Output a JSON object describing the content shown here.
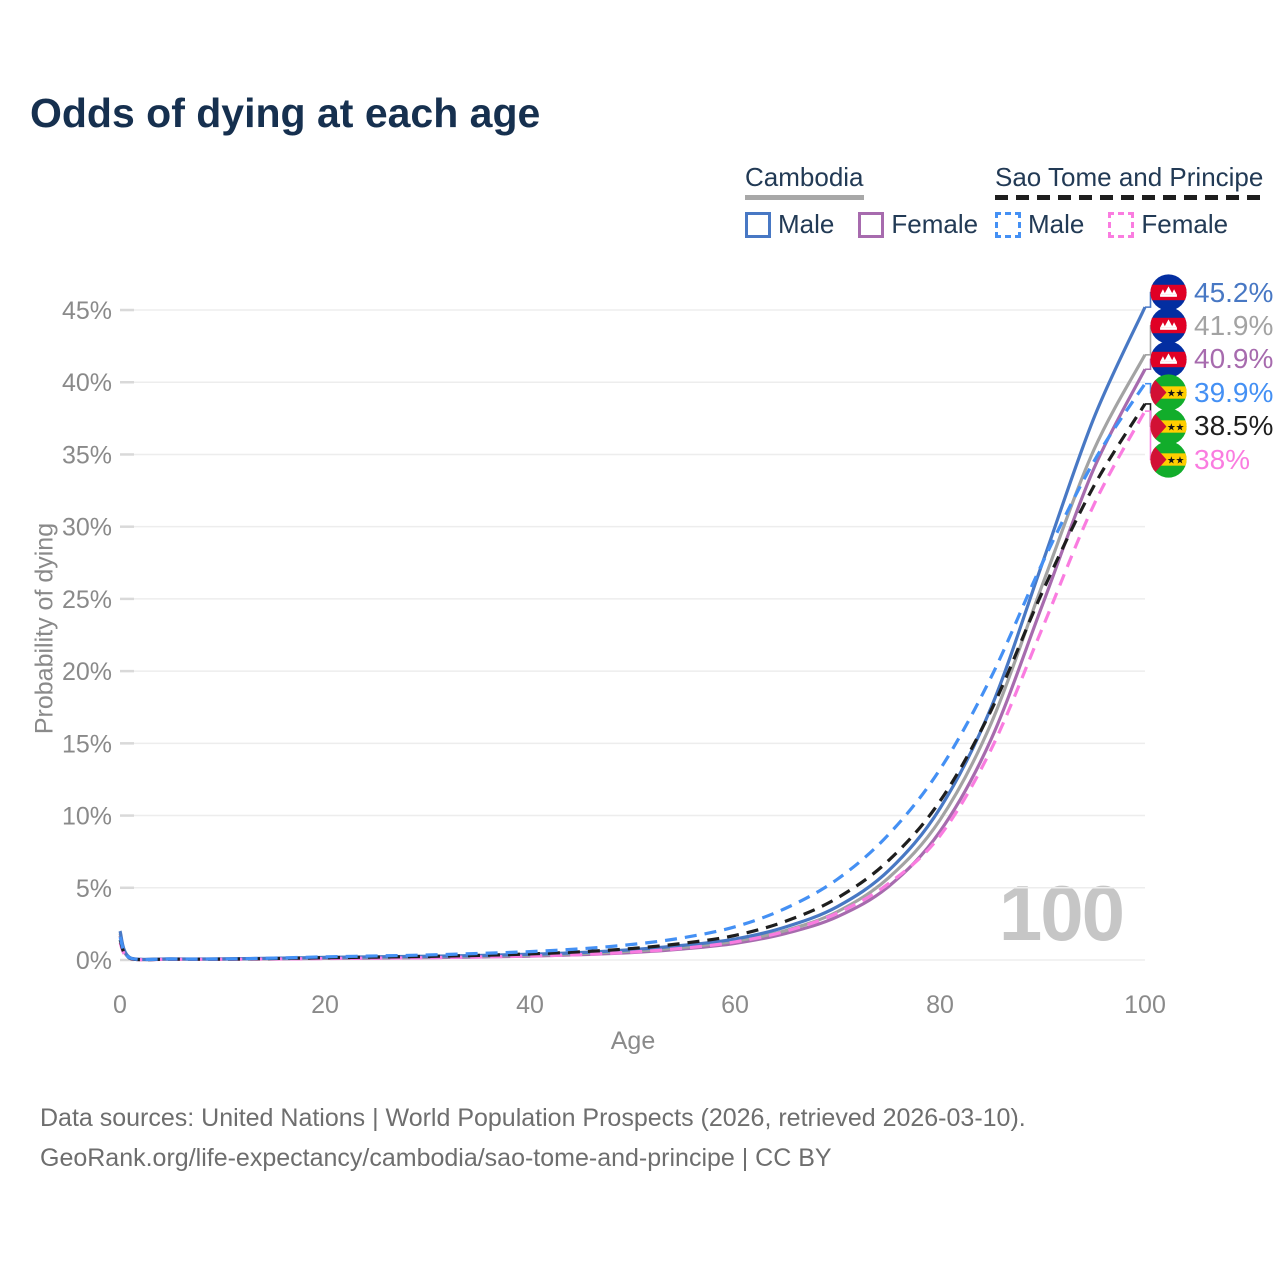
{
  "title": "Odds of dying at each age",
  "legend": {
    "cambodia": {
      "name": "Cambodia",
      "male_label": "Male",
      "female_label": "Female"
    },
    "sao_tome": {
      "name": "Sao Tome and Principe",
      "male_label": "Male",
      "female_label": "Female"
    }
  },
  "axes": {
    "x_label": "Age",
    "y_label": "Probability of dying"
  },
  "watermark": "100",
  "footer": {
    "line1": "Data sources: United Nations | World Population Prospects (2026, retrieved 2026-03-10).",
    "line2": "GeoRank.org/life-expectancy/cambodia/sao-tome-and-principe | CC BY"
  },
  "colors": {
    "title_text": "#16304f",
    "legend_text": "#223a55",
    "cambodia_male": "#4878c4",
    "cambodia_both": "#a3a3a3",
    "cambodia_female": "#a76bae",
    "stp_male": "#4490f4",
    "stp_both": "#1e1e1e",
    "stp_female": "#fa7ce0",
    "grid": "#ededed",
    "tick_stub": "#d9d9d9",
    "axis_text": "#8a8a8a",
    "watermark": "#c6c6c6",
    "footer_text": "#6e6e6e"
  },
  "chart_data": {
    "type": "line",
    "title": "Odds of dying at each age",
    "xlabel": "Age",
    "ylabel": "Probability of dying",
    "xlim": [
      0,
      100
    ],
    "ylim_percent": [
      0,
      47
    ],
    "grid": "horizontal",
    "legend_position": "top-right",
    "x_ticks": [
      0,
      20,
      40,
      60,
      80,
      100
    ],
    "y_ticks": [
      "0%",
      "5%",
      "10%",
      "15%",
      "20%",
      "25%",
      "30%",
      "35%",
      "40%",
      "45%"
    ],
    "y_tick_values": [
      0,
      5,
      10,
      15,
      20,
      25,
      30,
      35,
      40,
      45
    ],
    "ages": [
      0,
      1,
      5,
      10,
      15,
      20,
      25,
      30,
      35,
      40,
      45,
      50,
      55,
      60,
      65,
      70,
      75,
      80,
      85,
      90,
      95,
      100
    ],
    "series": [
      {
        "name": "Cambodia Male",
        "country": "Cambodia",
        "sex": "Male",
        "color": "#4878c4",
        "dashed": false,
        "flag": "kh",
        "end_label": "45.2%",
        "values_percent": [
          2.0,
          0.15,
          0.08,
          0.08,
          0.12,
          0.18,
          0.22,
          0.26,
          0.31,
          0.4,
          0.52,
          0.72,
          1.02,
          1.45,
          2.3,
          3.7,
          6.2,
          10.5,
          17.5,
          27.5,
          37.5,
          45.2
        ]
      },
      {
        "name": "Cambodia Both sexes",
        "country": "Cambodia",
        "sex": "Both",
        "color": "#a3a3a3",
        "dashed": false,
        "flag": "kh",
        "end_label": "41.9%",
        "values_percent": [
          1.85,
          0.14,
          0.07,
          0.07,
          0.1,
          0.14,
          0.17,
          0.21,
          0.26,
          0.33,
          0.44,
          0.61,
          0.88,
          1.3,
          2.05,
          3.35,
          5.7,
          9.7,
          16.4,
          26.0,
          35.3,
          41.9
        ]
      },
      {
        "name": "Cambodia Female",
        "country": "Cambodia",
        "sex": "Female",
        "color": "#a76bae",
        "dashed": false,
        "flag": "kh",
        "end_label": "40.9%",
        "values_percent": [
          1.7,
          0.12,
          0.06,
          0.06,
          0.08,
          0.11,
          0.13,
          0.16,
          0.21,
          0.27,
          0.37,
          0.52,
          0.77,
          1.15,
          1.85,
          3.0,
          5.1,
          8.9,
          15.3,
          24.6,
          34.0,
          40.9
        ]
      },
      {
        "name": "Sao Tome and Principe Male",
        "country": "Sao Tome and Principe",
        "sex": "Male",
        "color": "#4490f4",
        "dashed": true,
        "flag": "st",
        "end_label": "39.9%",
        "values_percent": [
          1.6,
          0.13,
          0.07,
          0.07,
          0.13,
          0.22,
          0.28,
          0.35,
          0.45,
          0.58,
          0.78,
          1.08,
          1.55,
          2.3,
          3.6,
          5.6,
          8.7,
          13.2,
          19.6,
          27.5,
          34.5,
          39.9
        ]
      },
      {
        "name": "Sao Tome and Principe Both sexes",
        "country": "Sao Tome and Principe",
        "sex": "Both",
        "color": "#1e1e1e",
        "dashed": true,
        "flag": "st",
        "end_label": "38.5%",
        "values_percent": [
          1.4,
          0.11,
          0.06,
          0.06,
          0.1,
          0.16,
          0.2,
          0.25,
          0.32,
          0.42,
          0.57,
          0.8,
          1.16,
          1.7,
          2.7,
          4.3,
          6.9,
          11.0,
          17.3,
          25.5,
          32.8,
          38.5
        ]
      },
      {
        "name": "Sao Tome and Principe Female",
        "country": "Sao Tome and Principe",
        "sex": "Female",
        "color": "#fa7ce0",
        "dashed": true,
        "flag": "st",
        "end_label": "38%",
        "values_percent": [
          1.2,
          0.09,
          0.05,
          0.05,
          0.07,
          0.1,
          0.13,
          0.16,
          0.21,
          0.28,
          0.38,
          0.55,
          0.82,
          1.25,
          2.0,
          3.25,
          5.3,
          8.6,
          14.6,
          23.0,
          31.5,
          38.0
        ]
      }
    ]
  }
}
